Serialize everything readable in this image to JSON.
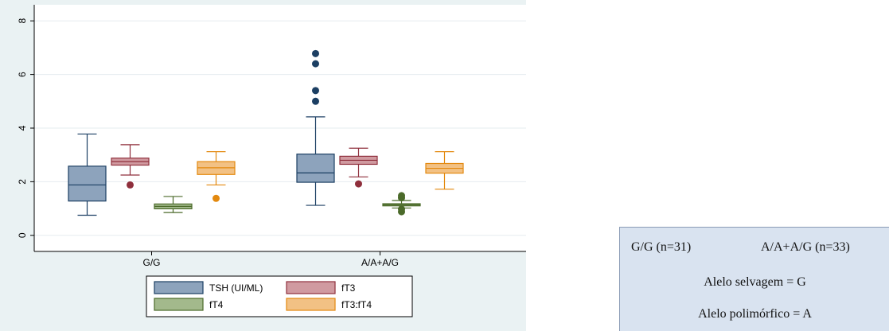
{
  "chart_data": {
    "type": "box",
    "categories": [
      "G/G",
      "A/A+A/G"
    ],
    "ylim": [
      -0.6,
      8.6
    ],
    "yticks": [
      0,
      2,
      4,
      6,
      8
    ],
    "ytick_labels": [
      "0",
      "2",
      "4",
      "6",
      "8"
    ],
    "grid": true,
    "legend_position": "bottom",
    "series": [
      {
        "name": "TSH (UI/ML)",
        "color": "#8da3bc",
        "edge": "#1c3f63",
        "boxes": [
          {
            "group": "G/G",
            "whisker_low": 0.75,
            "q1": 1.28,
            "median": 1.88,
            "q3": 2.58,
            "whisker_high": 3.78,
            "outliers": []
          },
          {
            "group": "A/A+A/G",
            "whisker_low": 1.12,
            "q1": 1.98,
            "median": 2.33,
            "q3": 3.03,
            "whisker_high": 4.42,
            "outliers": [
              5.0,
              5.4,
              6.4,
              6.78
            ]
          }
        ]
      },
      {
        "name": "fT3",
        "color": "#d09aa0",
        "edge": "#8f2f3c",
        "boxes": [
          {
            "group": "G/G",
            "whisker_low": 2.25,
            "q1": 2.62,
            "median": 2.75,
            "q3": 2.88,
            "whisker_high": 3.38,
            "outliers": [
              1.88
            ]
          },
          {
            "group": "A/A+A/G",
            "whisker_low": 2.18,
            "q1": 2.65,
            "median": 2.8,
            "q3": 2.95,
            "whisker_high": 3.25,
            "outliers": [
              1.92
            ]
          }
        ]
      },
      {
        "name": "fT4",
        "color": "#a3b98c",
        "edge": "#4b6a2a",
        "boxes": [
          {
            "group": "G/G",
            "whisker_low": 0.85,
            "q1": 0.99,
            "median": 1.08,
            "q3": 1.17,
            "whisker_high": 1.45,
            "outliers": []
          },
          {
            "group": "A/A+A/G",
            "whisker_low": 1.02,
            "q1": 1.1,
            "median": 1.14,
            "q3": 1.18,
            "whisker_high": 1.3,
            "outliers": [
              0.88,
              0.98,
              1.4,
              1.48
            ]
          }
        ]
      },
      {
        "name": "fT3:fT4",
        "color": "#f2c184",
        "edge": "#e3890f",
        "boxes": [
          {
            "group": "G/G",
            "whisker_low": 1.88,
            "q1": 2.27,
            "median": 2.52,
            "q3": 2.75,
            "whisker_high": 3.12,
            "outliers": [
              1.38
            ]
          },
          {
            "group": "A/A+A/G",
            "whisker_low": 1.72,
            "q1": 2.32,
            "median": 2.5,
            "q3": 2.68,
            "whisker_high": 3.12,
            "outliers": []
          }
        ]
      }
    ]
  },
  "note": {
    "group1": "G/G (n=31)",
    "group2": "A/A+A/G (n=33)",
    "wild": "Alelo selvagem = G",
    "poly": "Alelo polimórfico = A"
  }
}
